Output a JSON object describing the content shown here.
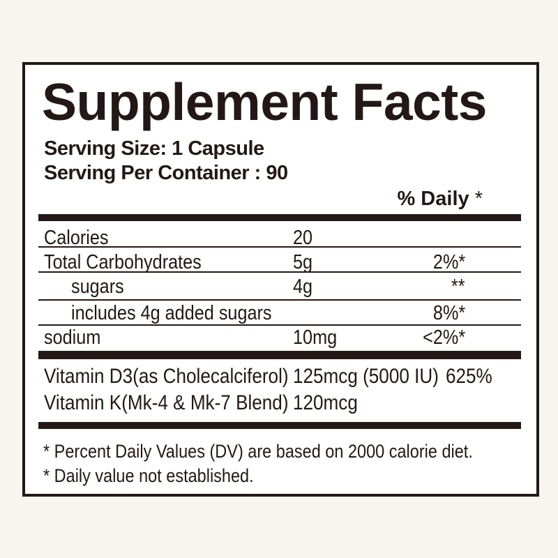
{
  "page": {
    "background_color": "#f8f5f1"
  },
  "panel": {
    "title": "Supplement Facts",
    "serving_size": "Serving Size: 1 Capsule",
    "servings_per_container": "Serving Per Container : 90",
    "daily_value_header": {
      "text": "% Daily",
      "mark": "*"
    },
    "nutrients": [
      {
        "name": "Calories",
        "amount": "20",
        "daily_value": ""
      },
      {
        "name": "Total Carbohydrates",
        "amount": "5g",
        "daily_value": "2%*"
      },
      {
        "name": "sugars",
        "amount": "4g",
        "daily_value": "**"
      },
      {
        "name": "includes 4g added sugars",
        "amount": "",
        "daily_value": "8%*"
      },
      {
        "name": "sodium",
        "amount": "10mg",
        "daily_value": "<2%*"
      }
    ],
    "vitamins": [
      {
        "name": "Vitamin D3(as Cholecalciferol)",
        "amount": "125mcg (5000 IU)",
        "daily_value": "625%"
      },
      {
        "name": "Vitamin K(Mk-4 & Mk-7 Blend)",
        "amount": "120mcg",
        "daily_value": ""
      }
    ],
    "footnotes": [
      "* Percent Daily Values (DV) are based on 2000 calorie diet.",
      "* Daily value not established."
    ],
    "colors": {
      "ink": "#231815",
      "panel_bg": "#ffffff",
      "page_bg": "#f8f5f1"
    }
  }
}
